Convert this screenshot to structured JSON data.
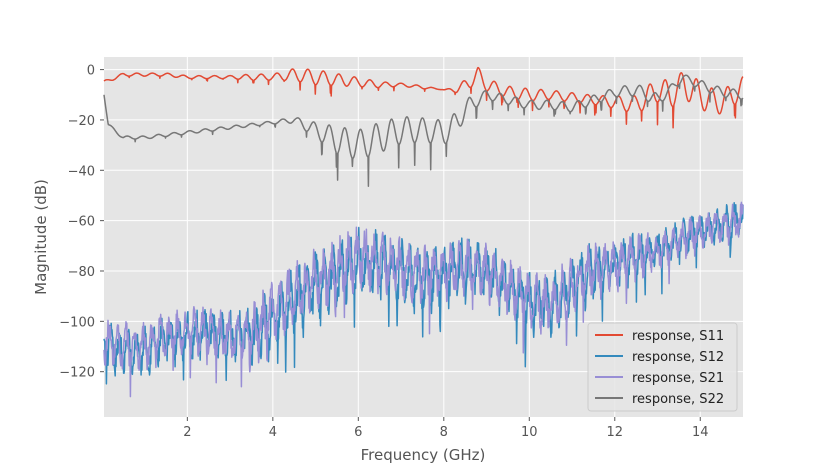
{
  "chart_data": {
    "type": "line",
    "title": "",
    "xlabel": "Frequency (GHz)",
    "ylabel": "Magnitude (dB)",
    "xlim": [
      0.05,
      15.0
    ],
    "ylim": [
      -138,
      5
    ],
    "xticks": [
      2,
      4,
      6,
      8,
      10,
      12,
      14
    ],
    "yticks": [
      0,
      -20,
      -40,
      -60,
      -80,
      -100,
      -120
    ],
    "grid": true,
    "legend_position": "lower-right",
    "series": [
      {
        "name": "response, S11",
        "color": "#E24A33",
        "x": [
          0.05,
          0.5,
          1,
          1.5,
          2,
          2.5,
          3,
          3.5,
          4,
          4.5,
          5,
          5.5,
          6,
          6.5,
          7,
          7.5,
          8,
          8.3,
          8.6,
          8.8,
          9,
          9.5,
          10,
          10.5,
          11,
          11.5,
          12,
          12.5,
          13,
          13.3,
          13.6,
          14,
          14.3,
          14.6,
          15
        ],
        "y": [
          -5,
          -2,
          -2,
          -2,
          -3,
          -3,
          -3,
          -3,
          -3,
          -2,
          -3,
          -4,
          -5,
          -6,
          -6,
          -7,
          -8,
          -8,
          -5,
          -2,
          -6,
          -9,
          -10,
          -10,
          -11,
          -12,
          -13,
          -14,
          -8,
          -10,
          -6,
          -10,
          -13,
          -12,
          -7
        ],
        "ripple_db": [
          1,
          1,
          1,
          1,
          1,
          1,
          1,
          2,
          2,
          4,
          5,
          4,
          3,
          2,
          1,
          1,
          0,
          2,
          4,
          5,
          4,
          4,
          4,
          3,
          3,
          3,
          4,
          6,
          8,
          9,
          9,
          9,
          9,
          8,
          7
        ]
      },
      {
        "name": "response, S12",
        "color": "#348ABD",
        "x": [
          0.05,
          0.5,
          1,
          1.5,
          2,
          2.5,
          3,
          3.5,
          4,
          4.5,
          5,
          5.5,
          6,
          6.5,
          7,
          7.5,
          8,
          8.5,
          9,
          9.5,
          10,
          10.5,
          11,
          11.5,
          12,
          12.5,
          13,
          13.5,
          14,
          14.5,
          15
        ],
        "y": [
          -110,
          -112,
          -112,
          -108,
          -106,
          -104,
          -106,
          -106,
          -98,
          -92,
          -86,
          -82,
          -76,
          -78,
          -80,
          -84,
          -82,
          -78,
          -80,
          -86,
          -92,
          -94,
          -86,
          -80,
          -78,
          -74,
          -72,
          -68,
          -64,
          -62,
          -60
        ],
        "ripple_db": [
          10,
          10,
          10,
          10,
          10,
          10,
          10,
          12,
          14,
          14,
          14,
          14,
          14,
          14,
          14,
          14,
          12,
          12,
          12,
          12,
          12,
          12,
          12,
          12,
          10,
          10,
          8,
          8,
          8,
          8,
          8
        ]
      },
      {
        "name": "response, S21",
        "color": "#988ED5",
        "x": [
          0.05,
          0.5,
          1,
          1.5,
          2,
          2.5,
          3,
          3.5,
          4,
          4.5,
          5,
          5.5,
          6,
          6.5,
          7,
          7.5,
          8,
          8.5,
          9,
          9.5,
          10,
          10.5,
          11,
          11.5,
          12,
          12.5,
          13,
          13.5,
          14,
          14.5,
          15
        ],
        "y": [
          -108,
          -110,
          -110,
          -106,
          -104,
          -104,
          -106,
          -106,
          -96,
          -90,
          -84,
          -80,
          -74,
          -76,
          -78,
          -82,
          -80,
          -78,
          -80,
          -86,
          -92,
          -94,
          -86,
          -80,
          -78,
          -74,
          -72,
          -68,
          -64,
          -62,
          -60
        ],
        "ripple_db": [
          10,
          10,
          10,
          10,
          10,
          10,
          10,
          12,
          13,
          13,
          13,
          13,
          13,
          13,
          13,
          13,
          12,
          12,
          12,
          12,
          12,
          12,
          12,
          12,
          10,
          10,
          8,
          8,
          8,
          8,
          8
        ]
      },
      {
        "name": "response, S22",
        "color": "#777777",
        "x": [
          0.05,
          0.15,
          0.5,
          1,
          1.5,
          2,
          2.5,
          3,
          3.5,
          4,
          4.5,
          5,
          5.5,
          6,
          6.5,
          7,
          7.5,
          8,
          8.2,
          8.6,
          9,
          9.5,
          10,
          10.5,
          11,
          11.5,
          12,
          12.5,
          13,
          13.3,
          13.6,
          14,
          14.5,
          15
        ],
        "y": [
          -10,
          -22,
          -27,
          -27,
          -26,
          -25,
          -24,
          -23,
          -22,
          -21,
          -20,
          -24,
          -28,
          -30,
          -27,
          -24,
          -24,
          -25,
          -23,
          -14,
          -10,
          -12,
          -14,
          -14,
          -15,
          -12,
          -9,
          -8,
          -12,
          -8,
          -3,
          -6,
          -9,
          -10
        ],
        "ripple_db": [
          0,
          1,
          1,
          1,
          1,
          1,
          1,
          1,
          1,
          1,
          2,
          5,
          9,
          10,
          10,
          9,
          8,
          8,
          8,
          5,
          3,
          3,
          3,
          3,
          3,
          3,
          3,
          4,
          4,
          3,
          2,
          3,
          3,
          3
        ]
      }
    ]
  }
}
